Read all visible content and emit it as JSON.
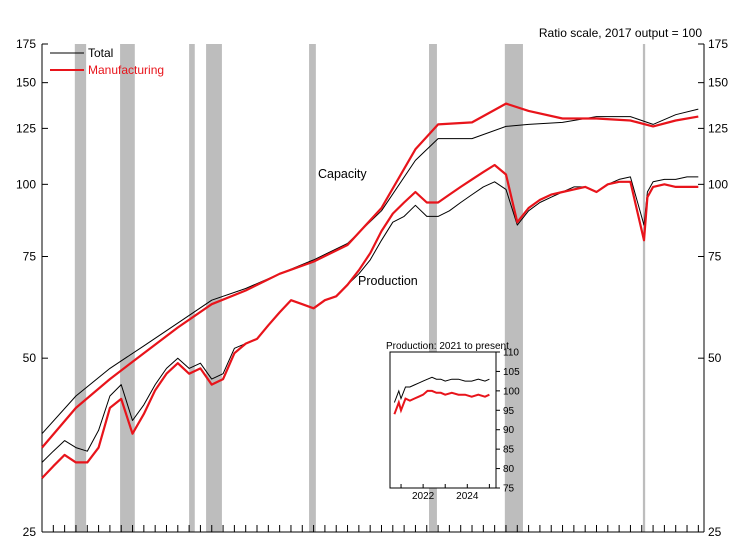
{
  "chart_data": {
    "type": "line",
    "note": "Ratio scale, 2017 output = 100",
    "x_range": [
      1967,
      2025.5
    ],
    "y_scale": "log",
    "y_range": [
      25,
      175
    ],
    "y_ticks": [
      25,
      50,
      75,
      100,
      125,
      150,
      175
    ],
    "grid": false,
    "legend_position": "top-left",
    "colors": {
      "total": "#000000",
      "manufacturing": "#e8141b",
      "recession": "#bdbdbd"
    },
    "legend": [
      {
        "label": "Total",
        "color": "#000000"
      },
      {
        "label": "Manufacturing",
        "color": "#e8141b"
      }
    ],
    "annotations": {
      "capacity": "Capacity",
      "production": "Production"
    },
    "recessions": [
      [
        1969.9,
        1970.9
      ],
      [
        1973.9,
        1975.2
      ],
      [
        1980.0,
        1980.5
      ],
      [
        1981.5,
        1982.9
      ],
      [
        1990.6,
        1991.2
      ],
      [
        2001.2,
        2001.9
      ],
      [
        2007.9,
        2009.5
      ],
      [
        2020.1,
        2020.3
      ]
    ],
    "series": [
      {
        "name": "Total capacity",
        "group": "Total",
        "x": [
          1967,
          1970,
          1973,
          1976,
          1979,
          1982,
          1985,
          1988,
          1991,
          1994,
          1997,
          2000,
          2002,
          2005,
          2008,
          2010,
          2013,
          2016,
          2019,
          2021,
          2023,
          2025
        ],
        "values": [
          37,
          43,
          48,
          52.5,
          57.5,
          63,
          66,
          70,
          74,
          79,
          90,
          110,
          120,
          120,
          126,
          127,
          128,
          131,
          131,
          127,
          132,
          135
        ]
      },
      {
        "name": "Manufacturing capacity",
        "group": "Manufacturing",
        "x": [
          1967,
          1970,
          1973,
          1976,
          1979,
          1982,
          1985,
          1988,
          1991,
          1994,
          1997,
          2000,
          2002,
          2005,
          2008,
          2010,
          2013,
          2016,
          2019,
          2021,
          2023,
          2025
        ],
        "values": [
          35,
          41,
          46,
          51,
          56.5,
          62,
          65.5,
          70,
          73.5,
          78.5,
          91,
          115,
          127,
          128,
          138,
          134,
          130,
          130,
          129,
          126,
          129,
          131
        ]
      },
      {
        "name": "Total production",
        "group": "Total",
        "x": [
          1967,
          1968,
          1969,
          1970,
          1971,
          1972,
          1973,
          1974,
          1975,
          1976,
          1977,
          1978,
          1979,
          1980,
          1981,
          1982,
          1983,
          1984,
          1985,
          1986,
          1987,
          1988,
          1989,
          1990,
          1991,
          1992,
          1993,
          1994,
          1995,
          1996,
          1997,
          1998,
          1999,
          2000,
          2001,
          2002,
          2003,
          2004,
          2005,
          2006,
          2007,
          2008,
          2009,
          2010,
          2011,
          2012,
          2013,
          2014,
          2015,
          2016,
          2017,
          2018,
          2019,
          2020.2,
          2020.5,
          2021,
          2022,
          2023,
          2024,
          2025
        ],
        "values": [
          33,
          34.5,
          36,
          35,
          34.5,
          37.5,
          43,
          45,
          39,
          41.5,
          45,
          48,
          50,
          48,
          49,
          46,
          47,
          52,
          53,
          54,
          57,
          60,
          63,
          62,
          61,
          63,
          64,
          67,
          70,
          74,
          80,
          86,
          88,
          92,
          88,
          88,
          90,
          93,
          96,
          99,
          101,
          98,
          85,
          90,
          93,
          95,
          97,
          99,
          99,
          97,
          100,
          102,
          103,
          85,
          97,
          101,
          102,
          102,
          103,
          103
        ]
      },
      {
        "name": "Manufacturing production",
        "group": "Manufacturing",
        "x": [
          1967,
          1968,
          1969,
          1970,
          1971,
          1972,
          1973,
          1974,
          1975,
          1976,
          1977,
          1978,
          1979,
          1980,
          1981,
          1982,
          1983,
          1984,
          1985,
          1986,
          1987,
          1988,
          1989,
          1990,
          1991,
          1992,
          1993,
          1994,
          1995,
          1996,
          1997,
          1998,
          1999,
          2000,
          2001,
          2002,
          2003,
          2004,
          2005,
          2006,
          2007,
          2008,
          2009,
          2010,
          2011,
          2012,
          2013,
          2014,
          2015,
          2016,
          2017,
          2018,
          2019,
          2020.2,
          2020.5,
          2021,
          2022,
          2023,
          2024,
          2025
        ],
        "values": [
          31,
          32.5,
          34,
          33,
          33,
          35,
          41,
          42.5,
          37,
          40,
          44,
          47,
          49,
          47,
          48,
          45,
          46,
          51,
          53,
          54,
          57,
          60,
          63,
          62,
          61,
          63,
          64,
          67,
          71,
          76,
          83,
          89,
          93,
          97,
          93,
          93,
          96,
          99,
          102,
          105,
          108,
          104,
          86,
          91,
          94,
          96,
          97,
          98,
          99,
          97,
          100,
          101,
          101,
          80,
          95,
          99,
          100,
          99,
          99,
          99
        ]
      }
    ],
    "inset": {
      "title": "Production: 2021 to present",
      "x_ticks": [
        2022,
        2024
      ],
      "y_ticks": [
        75,
        80,
        85,
        90,
        95,
        100,
        105,
        110
      ],
      "y_range": [
        75,
        110
      ],
      "x_range": [
        2020.5,
        2025.3
      ],
      "series": [
        {
          "name": "Total",
          "group": "Total",
          "x": [
            2020.7,
            2020.9,
            2021.0,
            2021.2,
            2021.4,
            2021.6,
            2021.8,
            2022.0,
            2022.2,
            2022.4,
            2022.6,
            2022.8,
            2023.0,
            2023.3,
            2023.6,
            2023.9,
            2024.2,
            2024.5,
            2024.8,
            2025.0
          ],
          "values": [
            97,
            100,
            98,
            101,
            101,
            101.5,
            102,
            102.5,
            103,
            103.5,
            103,
            103,
            102.5,
            103,
            103,
            102.5,
            102.5,
            103,
            102.5,
            103
          ]
        },
        {
          "name": "Manufacturing",
          "group": "Manufacturing",
          "x": [
            2020.7,
            2020.9,
            2021.0,
            2021.2,
            2021.4,
            2021.6,
            2021.8,
            2022.0,
            2022.2,
            2022.4,
            2022.6,
            2022.8,
            2023.0,
            2023.3,
            2023.6,
            2023.9,
            2024.2,
            2024.5,
            2024.8,
            2025.0
          ],
          "values": [
            94,
            97,
            95,
            98,
            97.5,
            98,
            98.5,
            99,
            100,
            100,
            99.5,
            99.5,
            99,
            99.5,
            99,
            99,
            98.5,
            99,
            98.5,
            99
          ]
        }
      ]
    }
  }
}
